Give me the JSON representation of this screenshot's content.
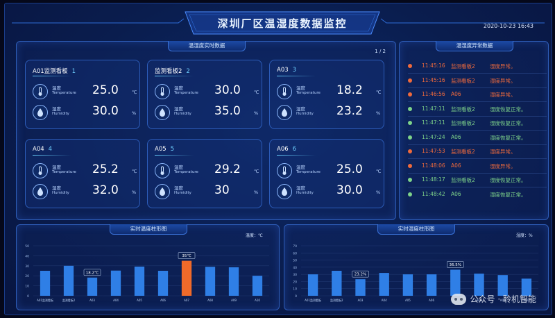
{
  "header": {
    "title": "深圳厂区温湿度数据监控",
    "datetime": "2020-10-23 16:43"
  },
  "realtime_panel": {
    "title": "温湿度实时数据",
    "page": "1 / 2",
    "cards": [
      {
        "name": "A01监测看板",
        "index": "1",
        "temp": "25.0",
        "hum": "30.0"
      },
      {
        "name": "监测看板2",
        "index": "2",
        "temp": "30.0",
        "hum": "35.0"
      },
      {
        "name": "A03",
        "index": "3",
        "temp": "18.2",
        "hum": "23.2"
      },
      {
        "name": "A04",
        "index": "4",
        "temp": "25.2",
        "hum": "32.0"
      },
      {
        "name": "A05",
        "index": "5",
        "temp": "29.2",
        "hum": "30"
      },
      {
        "name": "A06",
        "index": "6",
        "temp": "25.0",
        "hum": "30.0"
      }
    ],
    "temp_label_cn": "温度",
    "temp_label_en": "Temperature",
    "temp_unit": "℃",
    "hum_label_cn": "湿度",
    "hum_label_en": "Humidity",
    "hum_unit": "%"
  },
  "alarm_panel": {
    "title": "温湿度异常数据",
    "colors": {
      "abnormal": "#ef6a3c",
      "normal": "#7ed38a"
    },
    "rows": [
      {
        "time": "11:45:16",
        "device": "监测看板2",
        "msg": "湿度异常。",
        "status": "abnormal"
      },
      {
        "time": "11:45:16",
        "device": "监测看板2",
        "msg": "湿度异常。",
        "status": "abnormal"
      },
      {
        "time": "11:46:56",
        "device": "A06",
        "msg": "湿度异常。",
        "status": "abnormal"
      },
      {
        "time": "11:47:11",
        "device": "监测看板2",
        "msg": "湿度恢复正常。",
        "status": "normal"
      },
      {
        "time": "11:47:11",
        "device": "监测看板2",
        "msg": "湿度恢复正常。",
        "status": "normal"
      },
      {
        "time": "11:47:24",
        "device": "A06",
        "msg": "湿度恢复正常。",
        "status": "normal"
      },
      {
        "time": "11:47:53",
        "device": "监测看板2",
        "msg": "湿度异常。",
        "status": "abnormal"
      },
      {
        "time": "11:48:06",
        "device": "A06",
        "msg": "湿度异常。",
        "status": "abnormal"
      },
      {
        "time": "11:48:17",
        "device": "监测看板2",
        "msg": "湿度恢复正常。",
        "status": "normal"
      },
      {
        "time": "11:48:42",
        "device": "A06",
        "msg": "湿度恢复正常。",
        "status": "normal"
      }
    ]
  },
  "watermark": {
    "text": "公众号 · 聆机智能"
  },
  "chart_data": [
    {
      "type": "bar",
      "title": "实时温度柱形图",
      "unit_label": "温度：℃",
      "categories": [
        "A01监测看板",
        "监测看板2",
        "A03",
        "A04",
        "A05",
        "A06",
        "A07",
        "A08",
        "A09",
        "A10"
      ],
      "values": [
        25.0,
        30.0,
        18.2,
        25.2,
        29.2,
        25.0,
        35.0,
        29.0,
        28.5,
        20.0
      ],
      "highlight_index": 6,
      "callouts": [
        {
          "index": 2,
          "label": "18.2℃"
        },
        {
          "index": 6,
          "label": "35℃"
        }
      ],
      "ylim": [
        0,
        50
      ],
      "yticks": [
        "0",
        "10",
        "20",
        "30",
        "40",
        "50"
      ],
      "colors": {
        "bar": "#2f7fe6",
        "highlight": "#f06a2a"
      },
      "grid": true
    },
    {
      "type": "bar",
      "title": "实时湿度柱形图",
      "unit_label": "湿度：%",
      "categories": [
        "A01监测看板",
        "监测看板2",
        "A03",
        "A04",
        "A05",
        "A06",
        "A07",
        "A08",
        "A09",
        "A10"
      ],
      "values": [
        30.0,
        35.0,
        23.2,
        32.0,
        30.0,
        30.0,
        36.5,
        31.0,
        29.0,
        24.0
      ],
      "highlight_index": -1,
      "callouts": [
        {
          "index": 2,
          "label": "23.2%"
        },
        {
          "index": 6,
          "label": "36.5%"
        }
      ],
      "ylim": [
        0,
        70
      ],
      "yticks": [
        "0",
        "10",
        "20",
        "30",
        "40",
        "50",
        "60",
        "70"
      ],
      "colors": {
        "bar": "#2f7fe6",
        "highlight": "#f06a2a"
      },
      "grid": true
    }
  ]
}
